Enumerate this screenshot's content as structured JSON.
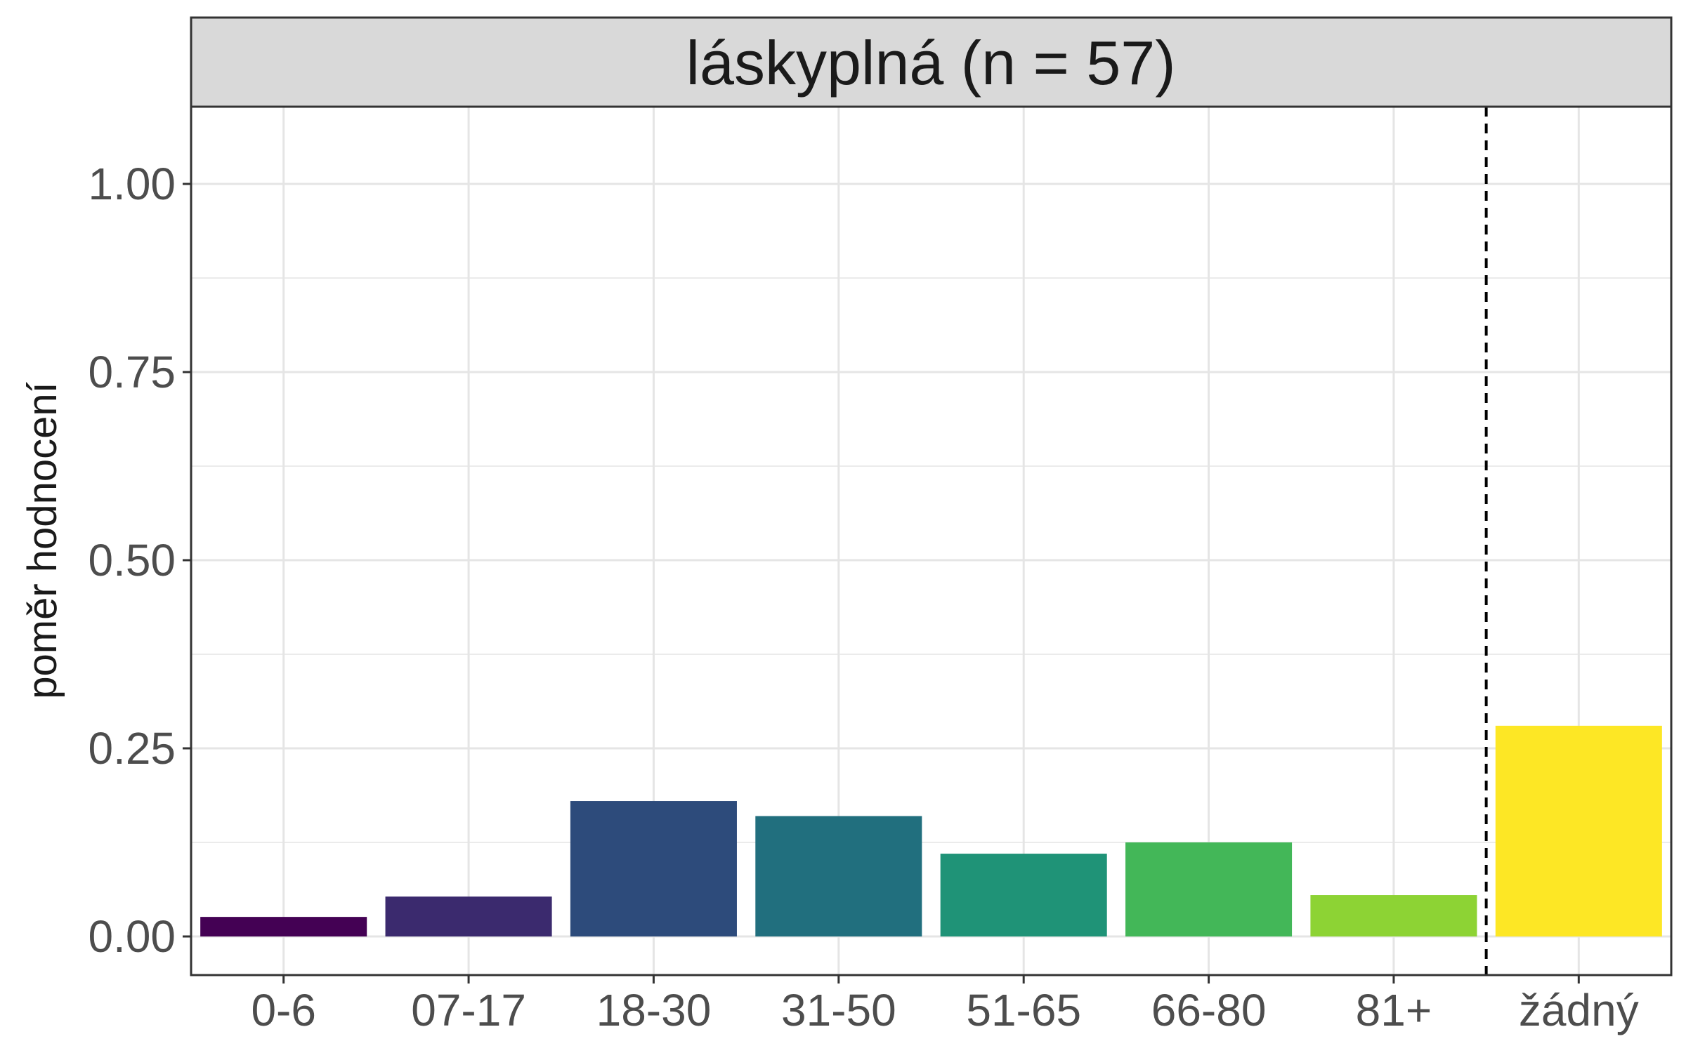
{
  "chart_data": {
    "type": "bar",
    "facet_title": "láskyplná (n = 57)",
    "xlabel": "",
    "ylabel": "poměr hodnocení",
    "ylim": [
      0,
      1.1
    ],
    "y_ticks": [
      "0.00",
      "0.25",
      "0.50",
      "0.75",
      "1.00"
    ],
    "y_tick_values": [
      0,
      0.25,
      0.5,
      0.75,
      1.0
    ],
    "categories": [
      "0-6",
      "07-17",
      "18-30",
      "31-50",
      "51-65",
      "66-80",
      "81+",
      "žádný"
    ],
    "values": [
      0.026,
      0.053,
      0.18,
      0.16,
      0.11,
      0.125,
      0.055,
      0.28
    ],
    "colors": [
      "#440154",
      "#3B2A6E",
      "#2D4B7B",
      "#216F7E",
      "#1F9377",
      "#43B758",
      "#8DD334",
      "#FDE725"
    ],
    "separator_after_index": 6,
    "separator_style": "dashed",
    "grid": true,
    "legend": "none"
  }
}
